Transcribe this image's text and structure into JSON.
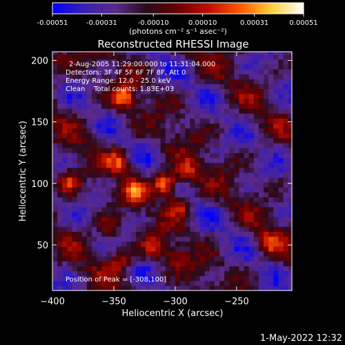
{
  "colorbar": {
    "tick_labels": [
      "-0.00051",
      "-0.00031",
      "-0.00010",
      "0.00010",
      "0.00031",
      "0.00051"
    ],
    "units_label": "(photons cm⁻² s⁻¹ asec⁻²)",
    "range": [
      -0.00051,
      0.00051
    ],
    "color_stops": [
      "#0000ff",
      "#3a1fb0",
      "#5a2a8c",
      "#2a0a1a",
      "#6a0000",
      "#c01000",
      "#ff5a00",
      "#ffd040",
      "#ffffff"
    ]
  },
  "chart_data": {
    "type": "heatmap",
    "title": "Reconstructed RHESSI Image",
    "xlabel": "Heliocentric X (arcsec)",
    "ylabel": "Heliocentric Y (arcsec)",
    "xlim": [
      -400,
      -205
    ],
    "ylim": [
      13,
      207
    ],
    "x_ticks": [
      -400,
      -350,
      -300,
      -250
    ],
    "y_ticks": [
      50,
      100,
      150,
      200
    ],
    "x_tick_labels": [
      "−400",
      "−350",
      "−300",
      "−250"
    ],
    "y_tick_labels": [
      "50",
      "100",
      "150",
      "200"
    ],
    "peak": [
      -308,
      100
    ],
    "sources": [
      {
        "x": -308,
        "y": 100,
        "amp": 1.0
      },
      {
        "x": -342,
        "y": 170,
        "amp": 0.72
      },
      {
        "x": -387,
        "y": 101,
        "amp": 0.62
      },
      {
        "x": -345,
        "y": 118,
        "amp": 0.55
      },
      {
        "x": -333,
        "y": 93,
        "amp": 0.5
      },
      {
        "x": -290,
        "y": 110,
        "amp": 0.55
      },
      {
        "x": -296,
        "y": 83,
        "amp": 0.55
      },
      {
        "x": -318,
        "y": 48,
        "amp": 0.45
      },
      {
        "x": -345,
        "y": 38,
        "amp": 0.5
      },
      {
        "x": -355,
        "y": 63,
        "amp": 0.45
      },
      {
        "x": -225,
        "y": 52,
        "amp": 0.45
      },
      {
        "x": -395,
        "y": 200,
        "amp": 0.4
      },
      {
        "x": -300,
        "y": 40,
        "amp": 0.35
      }
    ],
    "annotations": [
      "2-Aug-2005 11:29:00.000 to 11:31:04.000",
      "Detectors: 3F 4F 5F 6F 7F 8F, Att 0",
      "Energy Range: 12.0 - 25.0 keV",
      "Clean    Total counts: 1.83E+03"
    ],
    "peak_label": "Position of Peak = [-308,100]"
  },
  "footer": {
    "date_label": "1-May-2022 12:32"
  }
}
